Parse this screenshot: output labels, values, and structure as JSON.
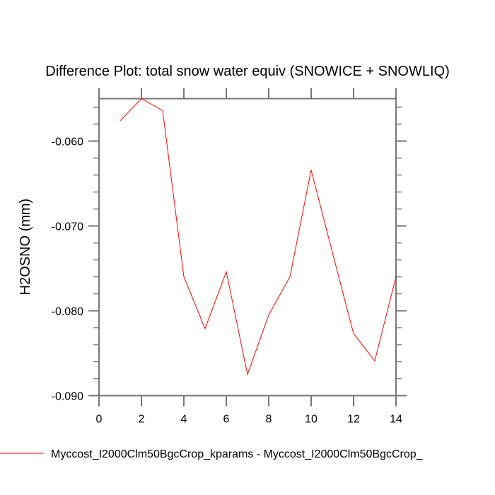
{
  "chart_data": {
    "type": "line",
    "title": "Difference Plot: total snow water equiv (SNOWICE + SNOWLIQ)",
    "xlabel": "",
    "ylabel": "H2OSNO  (mm)",
    "xlim": [
      0,
      14
    ],
    "ylim": [
      -0.09,
      -0.055
    ],
    "xticks": [
      0,
      2,
      4,
      6,
      8,
      10,
      12,
      14
    ],
    "xtick_labels": [
      "0",
      "2",
      "4",
      "6",
      "8",
      "10",
      "12",
      "14"
    ],
    "yticks": [
      -0.09,
      -0.08,
      -0.07,
      -0.06
    ],
    "ytick_labels": [
      "-0.090",
      "-0.080",
      "-0.070",
      "-0.060"
    ],
    "grid": false,
    "legend_position": "bottom-left",
    "series": [
      {
        "name": "Myccost_I2000Clm50BgcCrop_kparams - Myccost_I2000Clm50BgcCrop_",
        "color": "#ff0000",
        "x": [
          1,
          2,
          3,
          4,
          5,
          6,
          7,
          8,
          9,
          10,
          11,
          12,
          13,
          14
        ],
        "y": [
          -0.0576,
          -0.055,
          -0.0564,
          -0.076,
          -0.0821,
          -0.0754,
          -0.0875,
          -0.0805,
          -0.076,
          -0.0634,
          -0.0731,
          -0.0827,
          -0.0859,
          -0.076
        ]
      }
    ]
  }
}
